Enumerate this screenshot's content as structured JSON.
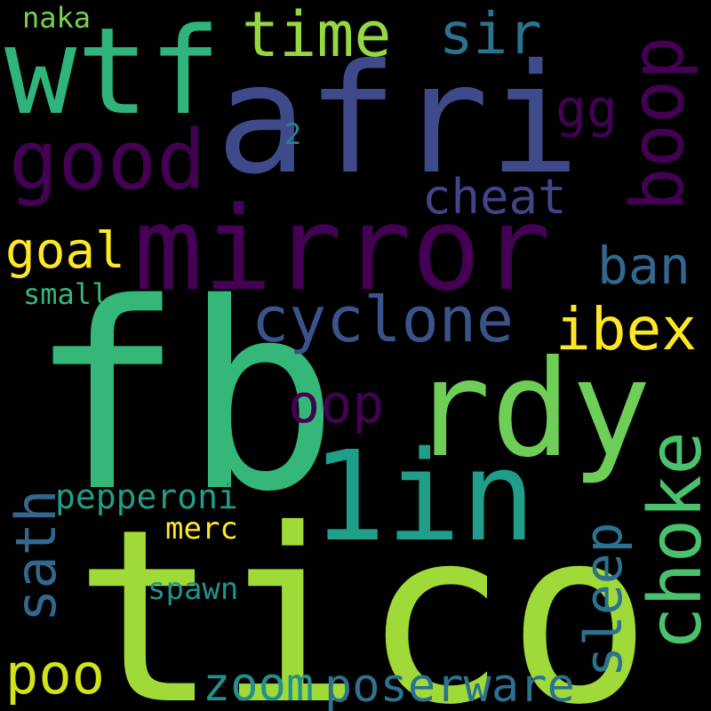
{
  "words": {
    "fb": "fb",
    "tico": "tico",
    "afri": "afri",
    "mirror": "mirror",
    "wtf": "wtf",
    "rdy": "rdy",
    "one_in": "1in",
    "good": "good",
    "cyclone": "cyclone",
    "choke": "choke",
    "boop": "boop",
    "time": "time",
    "sir": "sir",
    "cheat": "cheat",
    "ibex": "ibex",
    "ban": "ban",
    "goal": "goal",
    "sath": "sath",
    "oop": "oop",
    "sleep": "sleep",
    "poo": "poo",
    "zoom": "zoom",
    "poserware": "poserware",
    "pepperoni": "pepperoni",
    "merc": "merc",
    "spawn": "spawn",
    "small": "small",
    "naka": "naka",
    "gg": "gg",
    "two": "2"
  },
  "colors": {
    "fb": "#35b779",
    "tico": "#a0da39",
    "afri": "#3e4a89",
    "mirror": "#440154",
    "wtf": "#2fb47c",
    "rdy": "#6ece58",
    "one_in": "#1f9e89",
    "good": "#440154",
    "cyclone": "#3b528b",
    "choke": "#4ac16d",
    "boop": "#440154",
    "time": "#95d840",
    "sir": "#2c728e",
    "cheat": "#414487",
    "ibex": "#fde725",
    "ban": "#31688e",
    "goal": "#fde725",
    "sath": "#31688e",
    "oop": "#440154",
    "sleep": "#2c728e",
    "poo": "#d2e21b",
    "zoom": "#21918c",
    "poserware": "#2c728e",
    "pepperoni": "#1f9e89",
    "merc": "#fde725",
    "spawn": "#21918c",
    "small": "#35b779",
    "naka": "#7ad151",
    "gg": "#440154",
    "two": "#26828e"
  }
}
